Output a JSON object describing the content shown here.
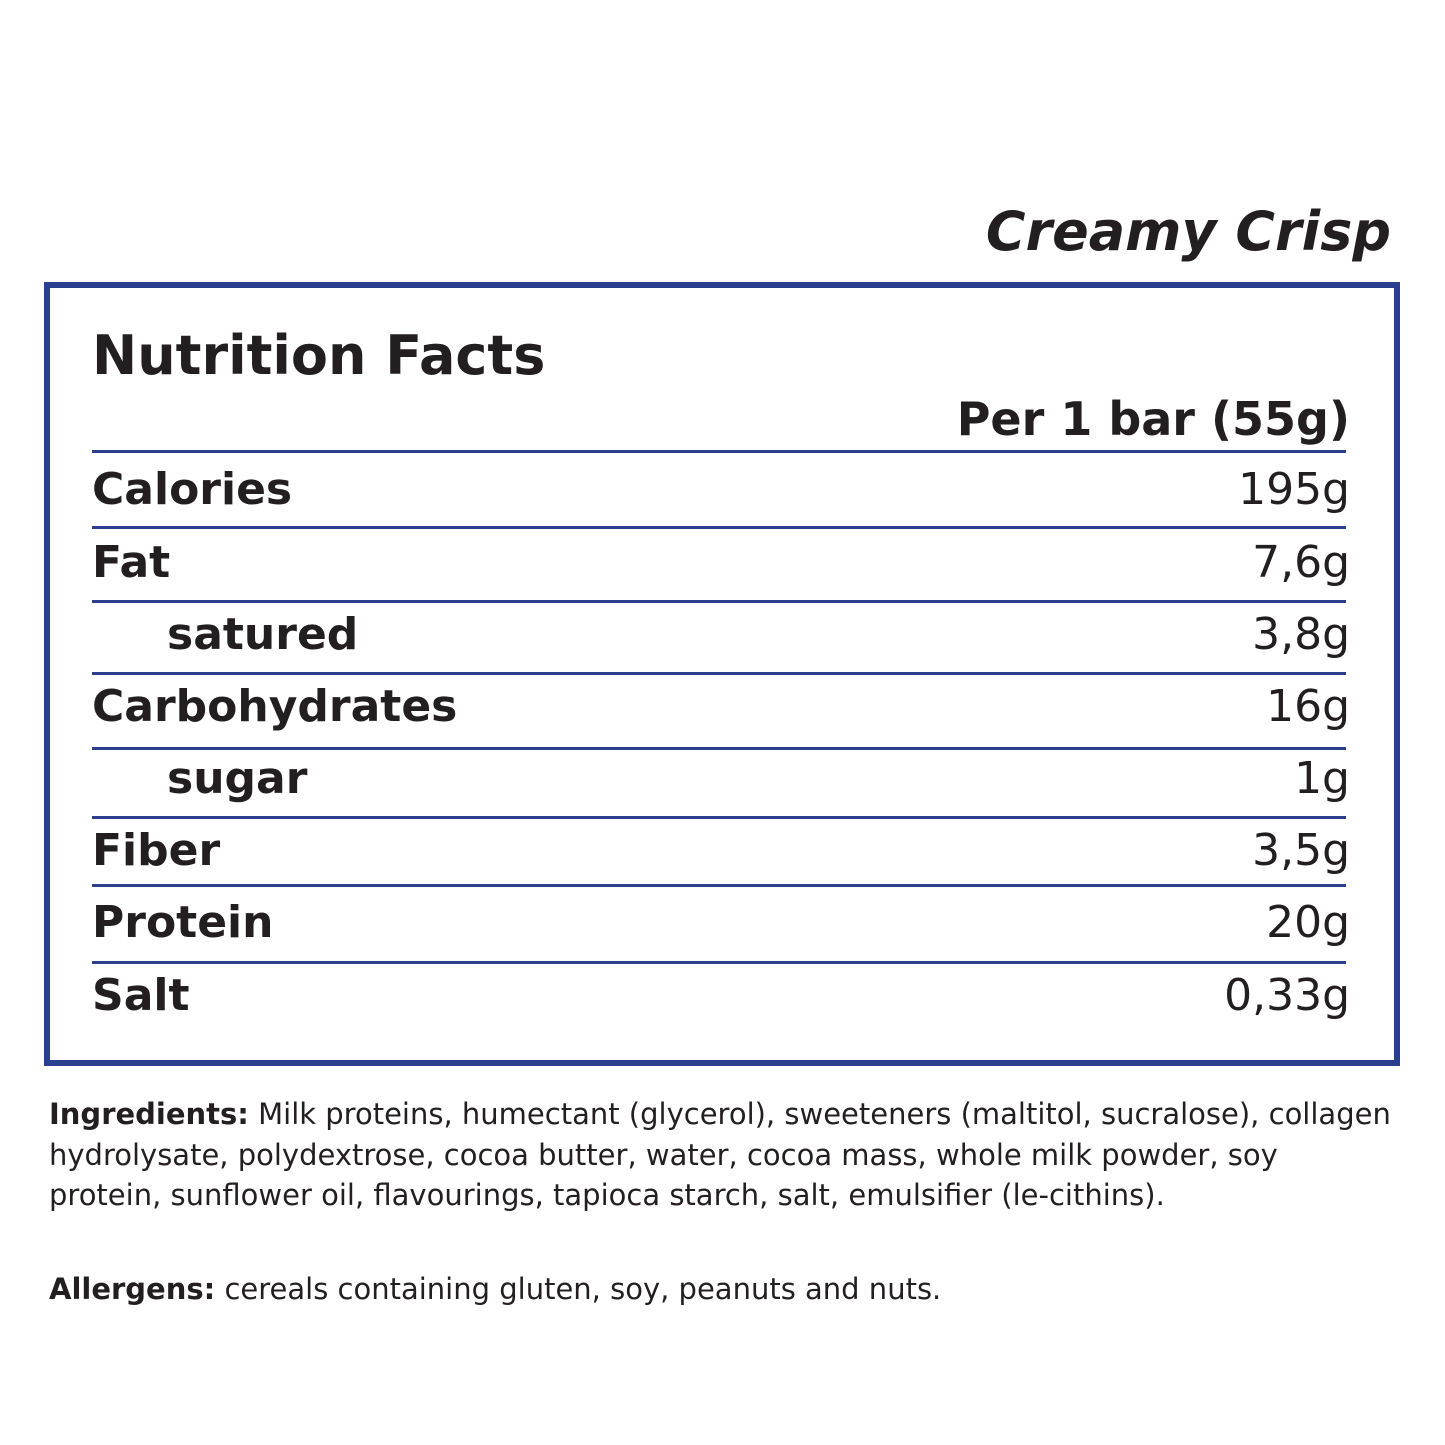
{
  "flavor": "Creamy Crisp",
  "title": "Nutrition Facts",
  "serving": "Per 1 bar (55g)",
  "border_color": "#2b3f8f",
  "rows": [
    {
      "label": "Calories",
      "value": "195g"
    },
    {
      "label": "Fat",
      "value": "7,6g"
    },
    {
      "label": "satured",
      "value": "3,8g"
    },
    {
      "label": "Carbohydrates",
      "value": "16g"
    },
    {
      "label": "sugar",
      "value": "1g"
    },
    {
      "label": "Fiber",
      "value": "3,5g"
    },
    {
      "label": "Protein",
      "value": "20g"
    },
    {
      "label": "Salt",
      "value": "0,33g"
    }
  ],
  "ingredients": {
    "label": "Ingredients:",
    "text": "Milk proteins, humectant (glycerol), sweeteners (maltitol, sucralose), collagen hydrolysate, polydextrose, cocoa butter, water, cocoa mass, whole milk powder, soy protein, sunflower oil, flavourings, tapioca starch, salt, emulsifier (le-cithins)."
  },
  "allergens": {
    "label": "Allergens:",
    "text": "cereals containing gluten, soy, peanuts and nuts."
  }
}
